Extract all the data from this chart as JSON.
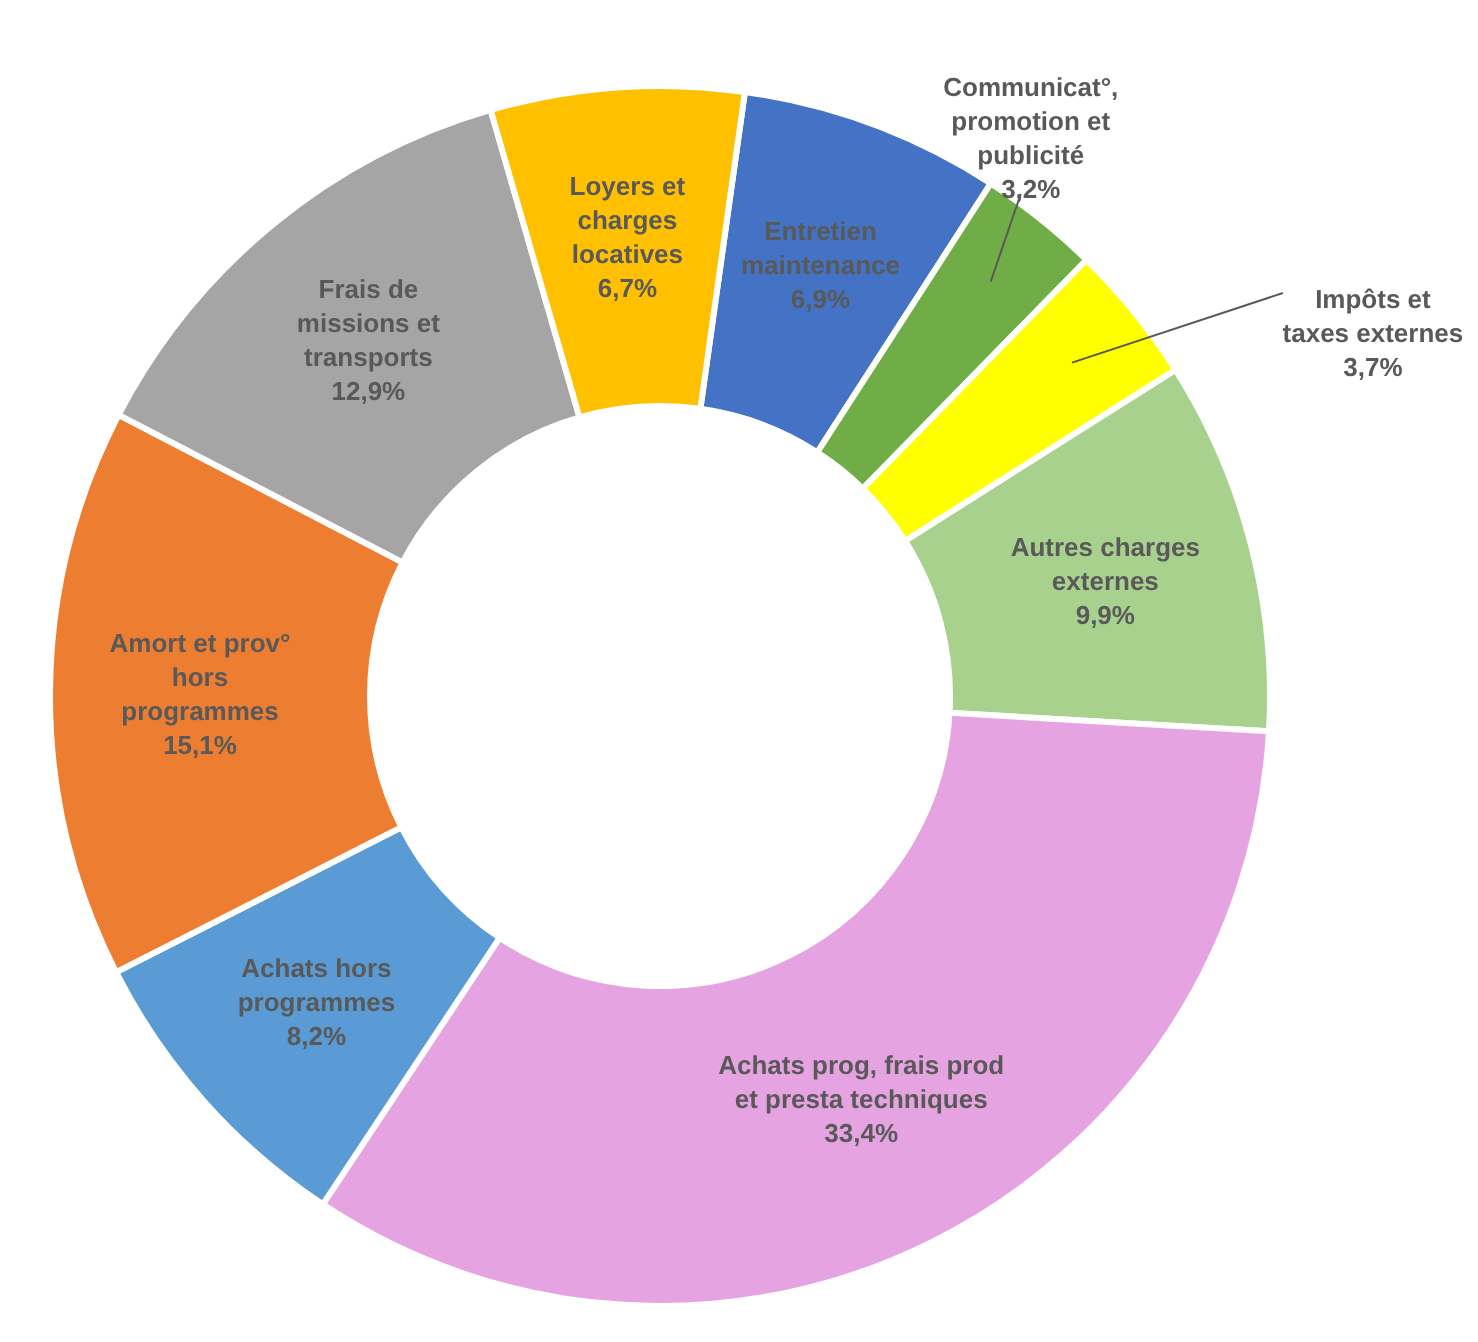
{
  "chart_data": {
    "type": "donut",
    "categories": [
      "Entretien maintenance",
      "Communicat°, promotion et publicité",
      "Impôts et taxes externes",
      "Autres charges externes",
      "Achats prog, frais prod et presta techniques",
      "Achats hors programmes",
      "Amort et prov° hors programmes",
      "Frais de missions et transports",
      "Loyers et charges locatives"
    ],
    "values": [
      6.9,
      3.2,
      3.7,
      9.9,
      33.4,
      8.2,
      15.1,
      12.9,
      6.7
    ],
    "colors": [
      "#4472c4",
      "#70ad47",
      "#ffff00",
      "#a9d18e",
      "#e6a3e1",
      "#5b9bd5",
      "#ed7d31",
      "#a5a5a5",
      "#ffc000"
    ],
    "value_labels": [
      "6,9%",
      "3,2%",
      "3,7%",
      "9,9%",
      "33,4%",
      "8,2%",
      "15,1%",
      "12,9%",
      "6,7%"
    ]
  }
}
